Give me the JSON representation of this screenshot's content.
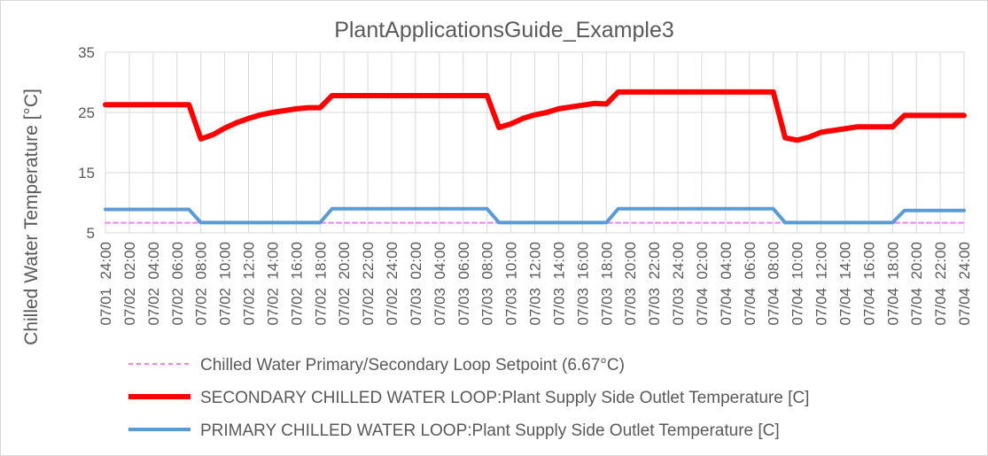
{
  "chart_data": {
    "type": "line",
    "title": "PlantApplicationsGuide_Example3",
    "xlabel": "",
    "ylabel": "Chilled Water Temperature [°C]",
    "ylim": [
      5,
      35
    ],
    "yticks": [
      5,
      15,
      25,
      35
    ],
    "grid": "vertical",
    "legend_position": "bottom",
    "categories": [
      "07/01  24:00",
      "07/02  02:00",
      "07/02  04:00",
      "07/02  06:00",
      "07/02  08:00",
      "07/02  10:00",
      "07/02  12:00",
      "07/02  14:00",
      "07/02  16:00",
      "07/02  18:00",
      "07/02  20:00",
      "07/02  22:00",
      "07/02  24:00",
      "07/03  02:00",
      "07/03  04:00",
      "07/03  06:00",
      "07/03  08:00",
      "07/03  10:00",
      "07/03  12:00",
      "07/03  14:00",
      "07/03  16:00",
      "07/03  18:00",
      "07/03  20:00",
      "07/03  22:00",
      "07/03  24:00",
      "07/04  02:00",
      "07/04  04:00",
      "07/04  06:00",
      "07/04  08:00",
      "07/04  10:00",
      "07/04  12:00",
      "07/04  14:00",
      "07/04  16:00",
      "07/04  18:00",
      "07/04  20:00",
      "07/04  22:00",
      "07/04  24:00"
    ],
    "x": [
      0,
      1,
      2,
      3,
      4,
      5,
      6,
      7,
      8,
      9,
      10,
      11,
      12,
      13,
      14,
      15,
      16,
      17,
      18,
      19,
      20,
      21,
      22,
      23,
      24,
      25,
      26,
      27,
      28,
      29,
      30,
      31,
      32,
      33,
      34,
      35,
      36,
      37,
      38,
      39,
      40,
      41,
      42,
      43,
      44,
      45,
      46,
      47,
      48,
      49,
      50,
      51,
      52,
      53,
      54,
      55,
      56,
      57,
      58,
      59,
      60,
      61,
      62,
      63,
      64,
      65,
      66,
      67,
      68,
      69,
      70,
      71,
      72
    ],
    "series": [
      {
        "name": "Chilled Water Primary/Secondary Loop Setpoint (6.67°C)",
        "color": "#ee82ee",
        "style": "dashed",
        "values": [
          6.67,
          6.67,
          6.67,
          6.67,
          6.67,
          6.67,
          6.67,
          6.67,
          6.67,
          6.67,
          6.67,
          6.67,
          6.67,
          6.67,
          6.67,
          6.67,
          6.67,
          6.67,
          6.67,
          6.67,
          6.67,
          6.67,
          6.67,
          6.67,
          6.67,
          6.67,
          6.67,
          6.67,
          6.67,
          6.67,
          6.67,
          6.67,
          6.67,
          6.67,
          6.67,
          6.67,
          6.67,
          6.67,
          6.67,
          6.67,
          6.67,
          6.67,
          6.67,
          6.67,
          6.67,
          6.67,
          6.67,
          6.67,
          6.67,
          6.67,
          6.67,
          6.67,
          6.67,
          6.67,
          6.67,
          6.67,
          6.67,
          6.67,
          6.67,
          6.67,
          6.67,
          6.67,
          6.67,
          6.67,
          6.67,
          6.67,
          6.67,
          6.67,
          6.67,
          6.67,
          6.67,
          6.67,
          6.67
        ]
      },
      {
        "name": "SECONDARY CHILLED WATER LOOP:Plant Supply Side Outlet Temperature [C]",
        "color": "#ff0000",
        "style": "solid",
        "values": [
          26.3,
          26.3,
          26.3,
          26.3,
          26.3,
          26.3,
          26.3,
          26.3,
          20.6,
          21.3,
          22.4,
          23.3,
          24.0,
          24.6,
          25.0,
          25.3,
          25.6,
          25.8,
          25.8,
          27.8,
          27.8,
          27.8,
          27.8,
          27.8,
          27.8,
          27.8,
          27.8,
          27.8,
          27.8,
          27.8,
          27.8,
          27.8,
          27.8,
          22.5,
          23.1,
          24.0,
          24.6,
          25.0,
          25.6,
          25.9,
          26.2,
          26.5,
          26.4,
          28.4,
          28.4,
          28.4,
          28.4,
          28.4,
          28.4,
          28.4,
          28.4,
          28.4,
          28.4,
          28.4,
          28.4,
          28.4,
          28.4,
          20.8,
          20.4,
          20.9,
          21.7,
          22.0,
          22.3,
          22.6,
          22.6,
          22.6,
          22.6,
          24.5,
          24.5,
          24.5,
          24.5,
          24.5,
          24.5
        ]
      },
      {
        "name": "PRIMARY CHILLED WATER LOOP:Plant Supply Side Outlet Temperature [C]",
        "color": "#5b9bd5",
        "style": "solid",
        "values": [
          8.9,
          8.9,
          8.9,
          8.9,
          8.9,
          8.9,
          8.9,
          8.9,
          6.7,
          6.7,
          6.7,
          6.7,
          6.7,
          6.7,
          6.7,
          6.7,
          6.7,
          6.7,
          6.7,
          9.0,
          9.0,
          9.0,
          9.0,
          9.0,
          9.0,
          9.0,
          9.0,
          9.0,
          9.0,
          9.0,
          9.0,
          9.0,
          9.0,
          6.7,
          6.7,
          6.7,
          6.7,
          6.7,
          6.7,
          6.7,
          6.7,
          6.7,
          6.7,
          9.0,
          9.0,
          9.0,
          9.0,
          9.0,
          9.0,
          9.0,
          9.0,
          9.0,
          9.0,
          9.0,
          9.0,
          9.0,
          9.0,
          6.7,
          6.7,
          6.7,
          6.7,
          6.7,
          6.7,
          6.7,
          6.7,
          6.7,
          6.7,
          8.7,
          8.7,
          8.7,
          8.7,
          8.7,
          8.7
        ]
      }
    ]
  }
}
